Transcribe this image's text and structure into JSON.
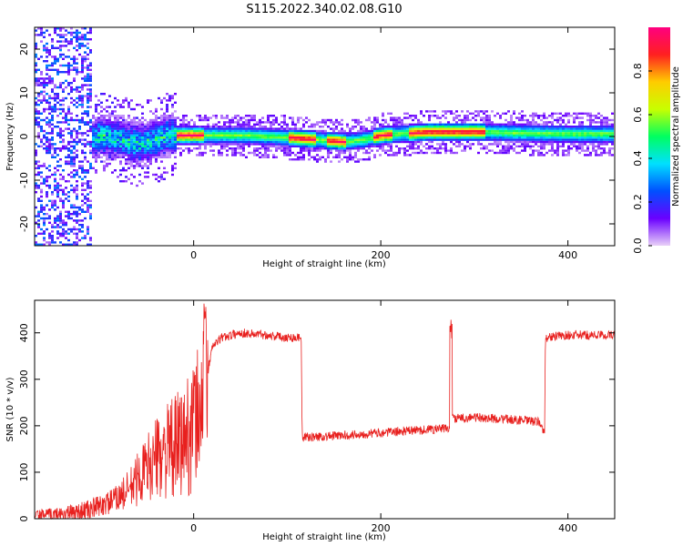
{
  "title": "S115.2022.340.02.08.G10",
  "chart_data": [
    {
      "type": "heatmap",
      "xlabel": "Height of straight line (km)",
      "ylabel": "Frequency (Hz)",
      "xlim": [
        -170,
        450
      ],
      "ylim": [
        -25,
        25
      ],
      "xticks": [
        0,
        200,
        400
      ],
      "yticks": [
        -20,
        -10,
        0,
        10,
        20
      ],
      "colorbar": {
        "label": "Normalized spectral amplitude",
        "range": [
          0,
          1
        ],
        "ticks": [
          "0.0",
          "0.2",
          "0.4",
          "0.6",
          "0.8"
        ],
        "colormap": [
          "#e8d0f8",
          "#6a00ff",
          "#0050ff",
          "#00e0ff",
          "#00ff60",
          "#c8ff00",
          "#ffcc00",
          "#ff2020",
          "#ff0080"
        ]
      },
      "ridge": {
        "x": [
          -160,
          -120,
          -100,
          -80,
          -60,
          -40,
          -30,
          -20,
          0,
          50,
          100,
          130,
          160,
          180,
          200,
          250,
          300,
          350,
          400,
          450
        ],
        "frequency": [
          -3,
          -2,
          0,
          -1,
          -2,
          -1,
          0,
          0,
          0,
          0,
          -0.5,
          -1,
          -1.5,
          -1,
          0,
          0.8,
          0.8,
          0.5,
          0.3,
          0.3
        ]
      }
    },
    {
      "type": "line",
      "xlabel": "Height of straight line (km)",
      "ylabel": "SNR (10 * v/v)",
      "xlim": [
        -170,
        450
      ],
      "ylim": [
        0,
        470
      ],
      "xticks": [
        0,
        200,
        400
      ],
      "yticks": [
        0,
        100,
        200,
        300,
        400
      ],
      "color": "#e8201e",
      "series": [
        {
          "x": [
            -170,
            -140,
            -110,
            -90,
            -70,
            -50,
            -35,
            -20,
            -10,
            0,
            10,
            20,
            30,
            50,
            80,
            100,
            115,
            116,
            150,
            200,
            250,
            275,
            276,
            300,
            350,
            370,
            375,
            376,
            400,
            450
          ],
          "y": [
            8,
            10,
            20,
            35,
            60,
            110,
            140,
            150,
            170,
            200,
            260,
            370,
            390,
            400,
            395,
            390,
            390,
            175,
            178,
            185,
            192,
            195,
            215,
            218,
            212,
            208,
            180,
            390,
            395,
            395
          ],
          "spikes": [
            {
              "x": 12,
              "y": 470
            },
            {
              "x": 275,
              "y": 430
            }
          ]
        }
      ]
    }
  ]
}
